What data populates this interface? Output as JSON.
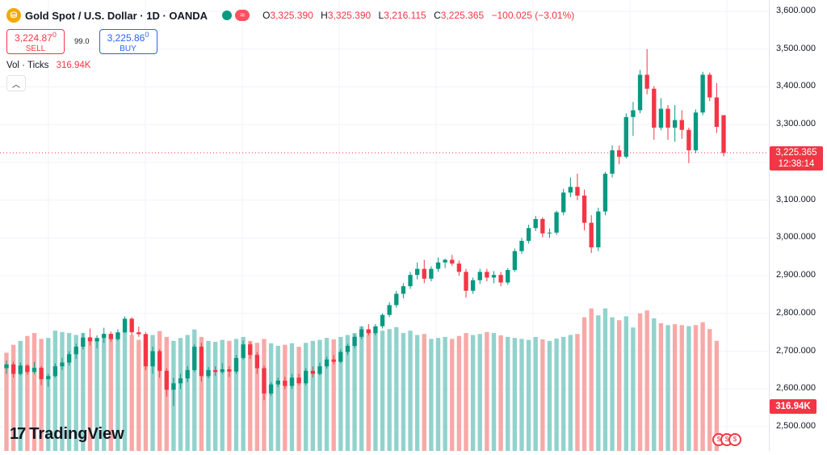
{
  "header": {
    "symbol_icon": "gold-coin-icon",
    "title": "Gold Spot / U.S. Dollar · 1D · OANDA",
    "open_label": "O",
    "open": "3,325.390",
    "high_label": "H",
    "high": "3,325.390",
    "low_label": "L",
    "low": "3,216.115",
    "close_label": "C",
    "close": "3,225.365",
    "change": "−100.025 (−3.01%)"
  },
  "trade": {
    "sell_price": "3,224.87",
    "sell_price_small": "0",
    "sell_label": "SELL",
    "spread": "99.0",
    "buy_price": "3,225.86",
    "buy_price_small": "0",
    "buy_label": "BUY"
  },
  "volume": {
    "label": "Vol · Ticks",
    "value": "316.94K"
  },
  "price_axis": {
    "last_price": "3,225.365",
    "countdown": "12:38:14",
    "volume_tag": "316.94K"
  },
  "branding": {
    "logo_text": "TradingView"
  },
  "colors": {
    "up": "#089981",
    "down": "#f23645",
    "up_volume": "#92d2cc",
    "down_volume": "#f7a9a7",
    "grid": "#f0f3fa"
  },
  "chart_data": {
    "type": "candlestick",
    "y_ticks": [
      "3,600.000",
      "3,500.000",
      "3,400.000",
      "3,300.000",
      "3,200.000",
      "3,100.000",
      "3,000.000",
      "2,900.000",
      "2,800.000",
      "2,700.000",
      "2,600.000",
      "2,500.000"
    ],
    "ylim": [
      2480,
      3620
    ],
    "last_price": 3225.365,
    "candles": [
      {
        "o": 2655,
        "h": 2675,
        "l": 2640,
        "c": 2665
      },
      {
        "o": 2665,
        "h": 2672,
        "l": 2630,
        "c": 2640
      },
      {
        "o": 2640,
        "h": 2670,
        "l": 2636,
        "c": 2662
      },
      {
        "o": 2662,
        "h": 2666,
        "l": 2638,
        "c": 2645
      },
      {
        "o": 2645,
        "h": 2672,
        "l": 2640,
        "c": 2656
      },
      {
        "o": 2656,
        "h": 2660,
        "l": 2610,
        "c": 2626
      },
      {
        "o": 2626,
        "h": 2640,
        "l": 2606,
        "c": 2634
      },
      {
        "o": 2634,
        "h": 2668,
        "l": 2630,
        "c": 2660
      },
      {
        "o": 2660,
        "h": 2682,
        "l": 2650,
        "c": 2670
      },
      {
        "o": 2670,
        "h": 2700,
        "l": 2662,
        "c": 2692
      },
      {
        "o": 2692,
        "h": 2720,
        "l": 2680,
        "c": 2712
      },
      {
        "o": 2712,
        "h": 2748,
        "l": 2705,
        "c": 2736
      },
      {
        "o": 2736,
        "h": 2760,
        "l": 2715,
        "c": 2726
      },
      {
        "o": 2726,
        "h": 2742,
        "l": 2708,
        "c": 2735
      },
      {
        "o": 2735,
        "h": 2762,
        "l": 2722,
        "c": 2746
      },
      {
        "o": 2746,
        "h": 2752,
        "l": 2725,
        "c": 2732
      },
      {
        "o": 2732,
        "h": 2758,
        "l": 2728,
        "c": 2750
      },
      {
        "o": 2750,
        "h": 2792,
        "l": 2748,
        "c": 2786
      },
      {
        "o": 2786,
        "h": 2790,
        "l": 2742,
        "c": 2750
      },
      {
        "o": 2750,
        "h": 2765,
        "l": 2738,
        "c": 2745
      },
      {
        "o": 2745,
        "h": 2750,
        "l": 2650,
        "c": 2660
      },
      {
        "o": 2660,
        "h": 2712,
        "l": 2640,
        "c": 2700
      },
      {
        "o": 2700,
        "h": 2705,
        "l": 2630,
        "c": 2648
      },
      {
        "o": 2648,
        "h": 2655,
        "l": 2580,
        "c": 2598
      },
      {
        "o": 2598,
        "h": 2630,
        "l": 2555,
        "c": 2615
      },
      {
        "o": 2615,
        "h": 2640,
        "l": 2600,
        "c": 2628
      },
      {
        "o": 2628,
        "h": 2660,
        "l": 2618,
        "c": 2650
      },
      {
        "o": 2650,
        "h": 2718,
        "l": 2645,
        "c": 2712
      },
      {
        "o": 2712,
        "h": 2722,
        "l": 2620,
        "c": 2634
      },
      {
        "o": 2634,
        "h": 2658,
        "l": 2628,
        "c": 2650
      },
      {
        "o": 2650,
        "h": 2660,
        "l": 2635,
        "c": 2645
      },
      {
        "o": 2645,
        "h": 2668,
        "l": 2640,
        "c": 2652
      },
      {
        "o": 2652,
        "h": 2660,
        "l": 2632,
        "c": 2646
      },
      {
        "o": 2646,
        "h": 2690,
        "l": 2640,
        "c": 2682
      },
      {
        "o": 2682,
        "h": 2728,
        "l": 2678,
        "c": 2718
      },
      {
        "o": 2718,
        "h": 2724,
        "l": 2680,
        "c": 2690
      },
      {
        "o": 2690,
        "h": 2698,
        "l": 2640,
        "c": 2655
      },
      {
        "o": 2655,
        "h": 2662,
        "l": 2570,
        "c": 2588
      },
      {
        "o": 2588,
        "h": 2618,
        "l": 2582,
        "c": 2612
      },
      {
        "o": 2612,
        "h": 2630,
        "l": 2605,
        "c": 2622
      },
      {
        "o": 2622,
        "h": 2632,
        "l": 2600,
        "c": 2608
      },
      {
        "o": 2608,
        "h": 2640,
        "l": 2600,
        "c": 2630
      },
      {
        "o": 2630,
        "h": 2640,
        "l": 2610,
        "c": 2615
      },
      {
        "o": 2615,
        "h": 2655,
        "l": 2610,
        "c": 2648
      },
      {
        "o": 2648,
        "h": 2660,
        "l": 2630,
        "c": 2640
      },
      {
        "o": 2640,
        "h": 2670,
        "l": 2636,
        "c": 2660
      },
      {
        "o": 2660,
        "h": 2685,
        "l": 2654,
        "c": 2678
      },
      {
        "o": 2678,
        "h": 2690,
        "l": 2665,
        "c": 2672
      },
      {
        "o": 2672,
        "h": 2705,
        "l": 2668,
        "c": 2698
      },
      {
        "o": 2698,
        "h": 2720,
        "l": 2690,
        "c": 2714
      },
      {
        "o": 2714,
        "h": 2745,
        "l": 2708,
        "c": 2738
      },
      {
        "o": 2738,
        "h": 2765,
        "l": 2732,
        "c": 2758
      },
      {
        "o": 2758,
        "h": 2772,
        "l": 2742,
        "c": 2748
      },
      {
        "o": 2748,
        "h": 2772,
        "l": 2742,
        "c": 2766
      },
      {
        "o": 2766,
        "h": 2800,
        "l": 2760,
        "c": 2796
      },
      {
        "o": 2796,
        "h": 2830,
        "l": 2790,
        "c": 2822
      },
      {
        "o": 2822,
        "h": 2860,
        "l": 2815,
        "c": 2852
      },
      {
        "o": 2852,
        "h": 2880,
        "l": 2840,
        "c": 2872
      },
      {
        "o": 2872,
        "h": 2910,
        "l": 2865,
        "c": 2902
      },
      {
        "o": 2902,
        "h": 2935,
        "l": 2890,
        "c": 2918
      },
      {
        "o": 2918,
        "h": 2942,
        "l": 2880,
        "c": 2892
      },
      {
        "o": 2892,
        "h": 2925,
        "l": 2885,
        "c": 2918
      },
      {
        "o": 2918,
        "h": 2948,
        "l": 2910,
        "c": 2935
      },
      {
        "o": 2935,
        "h": 2945,
        "l": 2920,
        "c": 2942
      },
      {
        "o": 2942,
        "h": 2955,
        "l": 2926,
        "c": 2932
      },
      {
        "o": 2932,
        "h": 2940,
        "l": 2900,
        "c": 2910
      },
      {
        "o": 2910,
        "h": 2918,
        "l": 2842,
        "c": 2860
      },
      {
        "o": 2860,
        "h": 2895,
        "l": 2852,
        "c": 2888
      },
      {
        "o": 2888,
        "h": 2918,
        "l": 2878,
        "c": 2910
      },
      {
        "o": 2910,
        "h": 2918,
        "l": 2885,
        "c": 2895
      },
      {
        "o": 2895,
        "h": 2912,
        "l": 2880,
        "c": 2902
      },
      {
        "o": 2902,
        "h": 2910,
        "l": 2872,
        "c": 2882
      },
      {
        "o": 2882,
        "h": 2920,
        "l": 2876,
        "c": 2915
      },
      {
        "o": 2915,
        "h": 2972,
        "l": 2910,
        "c": 2965
      },
      {
        "o": 2965,
        "h": 3000,
        "l": 2958,
        "c": 2992
      },
      {
        "o": 2992,
        "h": 3035,
        "l": 2985,
        "c": 3026
      },
      {
        "o": 3026,
        "h": 3058,
        "l": 3018,
        "c": 3050
      },
      {
        "o": 3050,
        "h": 3055,
        "l": 3002,
        "c": 3012
      },
      {
        "o": 3012,
        "h": 3025,
        "l": 3000,
        "c": 3014
      },
      {
        "o": 3014,
        "h": 3072,
        "l": 3008,
        "c": 3068
      },
      {
        "o": 3068,
        "h": 3130,
        "l": 3060,
        "c": 3120
      },
      {
        "o": 3120,
        "h": 3160,
        "l": 3108,
        "c": 3135
      },
      {
        "o": 3135,
        "h": 3170,
        "l": 3100,
        "c": 3112
      },
      {
        "o": 3112,
        "h": 3128,
        "l": 3020,
        "c": 3040
      },
      {
        "o": 3040,
        "h": 3060,
        "l": 2960,
        "c": 2975
      },
      {
        "o": 2975,
        "h": 3080,
        "l": 2965,
        "c": 3070
      },
      {
        "o": 3070,
        "h": 3175,
        "l": 3060,
        "c": 3170
      },
      {
        "o": 3170,
        "h": 3245,
        "l": 3160,
        "c": 3232
      },
      {
        "o": 3232,
        "h": 3245,
        "l": 3195,
        "c": 3215
      },
      {
        "o": 3215,
        "h": 3330,
        "l": 3210,
        "c": 3320
      },
      {
        "o": 3320,
        "h": 3360,
        "l": 3270,
        "c": 3338
      },
      {
        "o": 3338,
        "h": 3445,
        "l": 3330,
        "c": 3432
      },
      {
        "o": 3432,
        "h": 3500,
        "l": 3380,
        "c": 3395
      },
      {
        "o": 3395,
        "h": 3402,
        "l": 3260,
        "c": 3292
      },
      {
        "o": 3292,
        "h": 3370,
        "l": 3285,
        "c": 3342
      },
      {
        "o": 3342,
        "h": 3352,
        "l": 3260,
        "c": 3292
      },
      {
        "o": 3292,
        "h": 3352,
        "l": 3255,
        "c": 3312
      },
      {
        "o": 3312,
        "h": 3338,
        "l": 3262,
        "c": 3286
      },
      {
        "o": 3286,
        "h": 3292,
        "l": 3198,
        "c": 3232
      },
      {
        "o": 3232,
        "h": 3340,
        "l": 3225,
        "c": 3332
      },
      {
        "o": 3332,
        "h": 3440,
        "l": 3325,
        "c": 3432
      },
      {
        "o": 3432,
        "h": 3438,
        "l": 3362,
        "c": 3372
      },
      {
        "o": 3372,
        "h": 3410,
        "l": 3278,
        "c": 3294
      },
      {
        "o": 3325,
        "h": 3325,
        "l": 3216,
        "c": 3225
      }
    ],
    "volumes": [
      {
        "v": 500,
        "up": false
      },
      {
        "v": 540,
        "up": false
      },
      {
        "v": 560,
        "up": true
      },
      {
        "v": 585,
        "up": false
      },
      {
        "v": 600,
        "up": false
      },
      {
        "v": 570,
        "up": false
      },
      {
        "v": 575,
        "up": true
      },
      {
        "v": 612,
        "up": true
      },
      {
        "v": 605,
        "up": true
      },
      {
        "v": 600,
        "up": true
      },
      {
        "v": 590,
        "up": true
      },
      {
        "v": 600,
        "up": true
      },
      {
        "v": 580,
        "up": false
      },
      {
        "v": 570,
        "up": true
      },
      {
        "v": 580,
        "up": true
      },
      {
        "v": 590,
        "up": false
      },
      {
        "v": 598,
        "up": true
      },
      {
        "v": 610,
        "up": true
      },
      {
        "v": 590,
        "up": false
      },
      {
        "v": 565,
        "up": false
      },
      {
        "v": 595,
        "up": false
      },
      {
        "v": 590,
        "up": true
      },
      {
        "v": 610,
        "up": false
      },
      {
        "v": 580,
        "up": false
      },
      {
        "v": 560,
        "up": true
      },
      {
        "v": 575,
        "up": true
      },
      {
        "v": 590,
        "up": true
      },
      {
        "v": 618,
        "up": true
      },
      {
        "v": 580,
        "up": false
      },
      {
        "v": 560,
        "up": true
      },
      {
        "v": 555,
        "up": true
      },
      {
        "v": 565,
        "up": true
      },
      {
        "v": 560,
        "up": false
      },
      {
        "v": 570,
        "up": true
      },
      {
        "v": 580,
        "up": true
      },
      {
        "v": 560,
        "up": false
      },
      {
        "v": 550,
        "up": false
      },
      {
        "v": 570,
        "up": false
      },
      {
        "v": 548,
        "up": true
      },
      {
        "v": 535,
        "up": true
      },
      {
        "v": 540,
        "up": false
      },
      {
        "v": 548,
        "up": true
      },
      {
        "v": 530,
        "up": false
      },
      {
        "v": 550,
        "up": true
      },
      {
        "v": 560,
        "up": true
      },
      {
        "v": 565,
        "up": true
      },
      {
        "v": 575,
        "up": true
      },
      {
        "v": 568,
        "up": false
      },
      {
        "v": 580,
        "up": true
      },
      {
        "v": 590,
        "up": true
      },
      {
        "v": 600,
        "up": true
      },
      {
        "v": 635,
        "up": true
      },
      {
        "v": 615,
        "up": false
      },
      {
        "v": 608,
        "up": true
      },
      {
        "v": 612,
        "up": true
      },
      {
        "v": 620,
        "up": true
      },
      {
        "v": 630,
        "up": true
      },
      {
        "v": 600,
        "up": true
      },
      {
        "v": 612,
        "up": true
      },
      {
        "v": 590,
        "up": true
      },
      {
        "v": 595,
        "up": false
      },
      {
        "v": 570,
        "up": true
      },
      {
        "v": 575,
        "up": true
      },
      {
        "v": 580,
        "up": true
      },
      {
        "v": 570,
        "up": false
      },
      {
        "v": 585,
        "up": false
      },
      {
        "v": 600,
        "up": false
      },
      {
        "v": 590,
        "up": true
      },
      {
        "v": 595,
        "up": true
      },
      {
        "v": 605,
        "up": false
      },
      {
        "v": 600,
        "up": true
      },
      {
        "v": 588,
        "up": false
      },
      {
        "v": 580,
        "up": true
      },
      {
        "v": 575,
        "up": true
      },
      {
        "v": 570,
        "up": true
      },
      {
        "v": 565,
        "up": true
      },
      {
        "v": 580,
        "up": true
      },
      {
        "v": 568,
        "up": false
      },
      {
        "v": 560,
        "up": true
      },
      {
        "v": 572,
        "up": true
      },
      {
        "v": 580,
        "up": true
      },
      {
        "v": 590,
        "up": true
      },
      {
        "v": 595,
        "up": false
      },
      {
        "v": 680,
        "up": false
      },
      {
        "v": 725,
        "up": false
      },
      {
        "v": 690,
        "up": true
      },
      {
        "v": 725,
        "up": true
      },
      {
        "v": 680,
        "up": true
      },
      {
        "v": 665,
        "up": false
      },
      {
        "v": 685,
        "up": true
      },
      {
        "v": 628,
        "up": true
      },
      {
        "v": 700,
        "up": false
      },
      {
        "v": 715,
        "up": false
      },
      {
        "v": 675,
        "up": true
      },
      {
        "v": 650,
        "up": false
      },
      {
        "v": 640,
        "up": true
      },
      {
        "v": 645,
        "up": false
      },
      {
        "v": 640,
        "up": false
      },
      {
        "v": 635,
        "up": true
      },
      {
        "v": 640,
        "up": false
      },
      {
        "v": 655,
        "up": false
      },
      {
        "v": 620,
        "up": false
      },
      {
        "v": 560,
        "up": false
      }
    ]
  }
}
